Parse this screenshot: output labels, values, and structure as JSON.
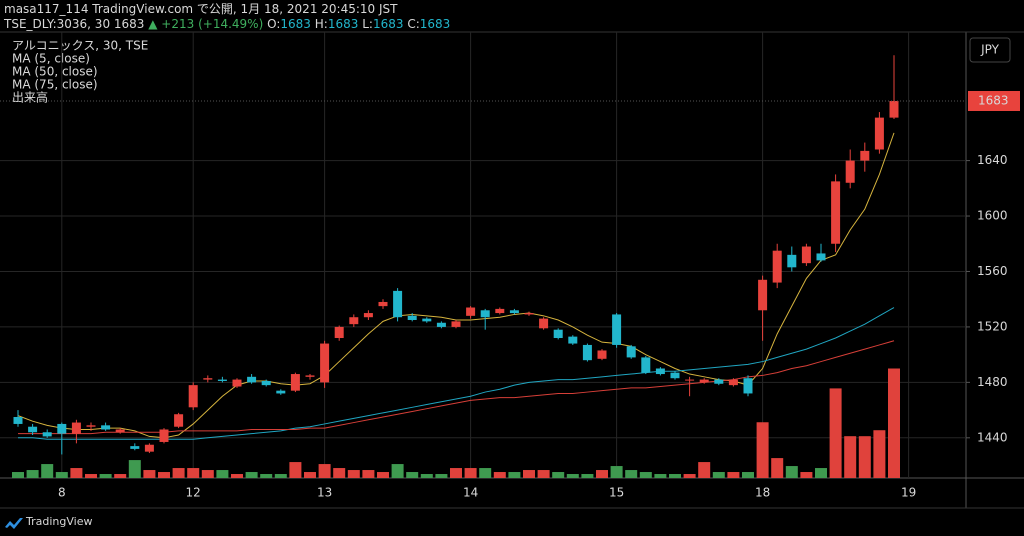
{
  "header": {
    "published": "masa117_114 TradingView.com で公開, 1月 18, 2021 20:45:10 JST",
    "symbol": "TSE_DLY:3036, 30 1683",
    "change": "▲ +213 (+14.49%)",
    "ohlc": [
      {
        "label": "O:",
        "value": "1683"
      },
      {
        "label": "H:",
        "value": "1683"
      },
      {
        "label": "L:",
        "value": "1683"
      },
      {
        "label": "C:",
        "value": "1683"
      }
    ]
  },
  "currency": "JPY",
  "footer": "TradingView",
  "chart_data": {
    "type": "candlestick",
    "title": "アルコニックス, 30, TSE",
    "categories": [
      null,
      null,
      null,
      "8",
      null,
      null,
      null,
      null,
      null,
      null,
      null,
      null,
      "12",
      null,
      null,
      null,
      null,
      null,
      null,
      null,
      null,
      "13",
      null,
      null,
      null,
      null,
      null,
      null,
      null,
      null,
      null,
      "14",
      null,
      null,
      null,
      null,
      null,
      null,
      null,
      null,
      null,
      "15",
      null,
      null,
      null,
      null,
      null,
      null,
      null,
      null,
      null,
      "18",
      null,
      null,
      null,
      null,
      null,
      null,
      null,
      null,
      null,
      "19"
    ],
    "open": [
      1455,
      1448,
      1444,
      1450,
      1443,
      1448,
      1449,
      1444,
      1434,
      1430,
      1437,
      1448,
      1462,
      1482,
      1482,
      1477,
      1484,
      1481,
      1474,
      1474,
      1484,
      1480,
      1512,
      1522,
      1527,
      1535,
      1546,
      1528,
      1526,
      1523,
      1520,
      1528,
      1532,
      1530,
      1532,
      1529,
      1519,
      1518,
      1513,
      1507,
      1497,
      1529,
      1506,
      1498,
      1490,
      1487,
      1482,
      1480,
      1482,
      1478,
      1483,
      1532,
      1552,
      1572,
      1566,
      1573,
      1580,
      1624,
      1640,
      1648,
      1671,
      null
    ],
    "high": [
      1460,
      1450,
      1446,
      1451,
      1453,
      1451,
      1451,
      1447,
      1436,
      1436,
      1447,
      1458,
      1480,
      1485,
      1484,
      1483,
      1486,
      1482,
      1475,
      1487,
      1486,
      1510,
      1521,
      1529,
      1532,
      1540,
      1548,
      1530,
      1527,
      1524,
      1525,
      1535,
      1533,
      1534,
      1533,
      1531,
      1527,
      1519,
      1514,
      1508,
      1504,
      1530,
      1507,
      1499,
      1491,
      1488,
      1484,
      1483,
      1483,
      1483,
      1485,
      1557,
      1580,
      1578,
      1580,
      1580,
      1630,
      1648,
      1653,
      1675,
      1716,
      null
    ],
    "low": [
      1448,
      1442,
      1440,
      1428,
      1436,
      1445,
      1445,
      1443,
      1431,
      1429,
      1436,
      1447,
      1460,
      1480,
      1480,
      1476,
      1479,
      1477,
      1471,
      1473,
      1482,
      1476,
      1510,
      1520,
      1525,
      1533,
      1524,
      1524,
      1523,
      1519,
      1519,
      1526,
      1518,
      1529,
      1529,
      1528,
      1518,
      1511,
      1507,
      1495,
      1496,
      1505,
      1497,
      1486,
      1485,
      1482,
      1470,
      1479,
      1478,
      1477,
      1470,
      1510,
      1548,
      1560,
      1564,
      1567,
      1574,
      1620,
      1632,
      1645,
      1670,
      null
    ],
    "close": [
      1450,
      1444,
      1441,
      1443,
      1451,
      1449,
      1446,
      1446,
      1432,
      1435,
      1446,
      1457,
      1478,
      1483,
      1481,
      1482,
      1480,
      1478,
      1472,
      1486,
      1485,
      1508,
      1520,
      1527,
      1530,
      1538,
      1527,
      1525,
      1524,
      1520,
      1524,
      1534,
      1527,
      1533,
      1530,
      1530,
      1526,
      1512,
      1508,
      1496,
      1503,
      1507,
      1498,
      1487,
      1486,
      1483,
      1482,
      1482,
      1479,
      1482,
      1472,
      1554,
      1575,
      1563,
      1578,
      1568,
      1625,
      1640,
      1647,
      1671,
      1683,
      null
    ],
    "up_color": "#e8433d",
    "down_color": "#22b6cc",
    "volume_name": "出来高",
    "volume_up_color": "#e0423c",
    "volume_down_color": "#3f9a50",
    "volume": [
      6,
      8,
      14,
      6,
      10,
      4,
      4,
      4,
      18,
      8,
      6,
      10,
      10,
      8,
      8,
      4,
      6,
      4,
      4,
      16,
      6,
      14,
      10,
      8,
      8,
      6,
      14,
      6,
      4,
      4,
      10,
      10,
      10,
      6,
      6,
      8,
      8,
      6,
      4,
      4,
      8,
      12,
      8,
      6,
      4,
      4,
      4,
      16,
      6,
      6,
      6,
      56,
      20,
      12,
      6,
      10,
      90,
      42,
      42,
      48,
      110,
      null
    ],
    "y2lim": [
      0,
      440
    ],
    "ma": [
      {
        "name": "MA (5, close)",
        "color": "#d6b43e",
        "values": [
          1456,
          1452,
          1449,
          1447,
          1446,
          1446,
          1447,
          1447,
          1445,
          1441,
          1440,
          1442,
          1450,
          1460,
          1470,
          1478,
          1481,
          1481,
          1479,
          1478,
          1479,
          1485,
          1495,
          1505,
          1515,
          1524,
          1528,
          1529,
          1528,
          1527,
          1525,
          1525,
          1526,
          1527,
          1529,
          1530,
          1528,
          1525,
          1520,
          1514,
          1509,
          1508,
          1506,
          1500,
          1495,
          1490,
          1486,
          1484,
          1482,
          1481,
          1478,
          1490,
          1515,
          1535,
          1555,
          1568,
          1572,
          1590,
          1605,
          1630,
          1660,
          null
        ]
      },
      {
        "name": "MA (50, close)",
        "color": "#20a6c2",
        "values": [
          1440,
          1440,
          1439,
          1439,
          1439,
          1439,
          1439,
          1439,
          1439,
          1439,
          1439,
          1439,
          1439,
          1440,
          1441,
          1442,
          1443,
          1444,
          1445,
          1447,
          1448,
          1450,
          1452,
          1454,
          1456,
          1458,
          1460,
          1462,
          1464,
          1466,
          1468,
          1470,
          1473,
          1475,
          1478,
          1480,
          1481,
          1482,
          1482,
          1483,
          1484,
          1485,
          1486,
          1487,
          1488,
          1488,
          1489,
          1490,
          1491,
          1492,
          1493,
          1495,
          1498,
          1501,
          1504,
          1508,
          1512,
          1517,
          1522,
          1528,
          1534,
          null
        ]
      },
      {
        "name": "MA (75, close)",
        "color": "#d63f38",
        "values": [
          1443,
          1443,
          1443,
          1443,
          1443,
          1443,
          1444,
          1444,
          1444,
          1444,
          1444,
          1445,
          1445,
          1445,
          1445,
          1445,
          1446,
          1446,
          1446,
          1446,
          1447,
          1447,
          1449,
          1451,
          1453,
          1455,
          1457,
          1459,
          1461,
          1463,
          1465,
          1467,
          1468,
          1469,
          1469,
          1470,
          1471,
          1472,
          1472,
          1473,
          1474,
          1475,
          1476,
          1476,
          1477,
          1478,
          1479,
          1480,
          1481,
          1482,
          1484,
          1485,
          1487,
          1490,
          1492,
          1495,
          1498,
          1501,
          1504,
          1507,
          1510,
          null
        ]
      }
    ],
    "last_price": 1683,
    "last_price_color": "#e8433d",
    "ylim": [
      1411,
      1727
    ],
    "yticks": [
      1440,
      1480,
      1520,
      1560,
      1600,
      1640
    ],
    "grid": true
  }
}
